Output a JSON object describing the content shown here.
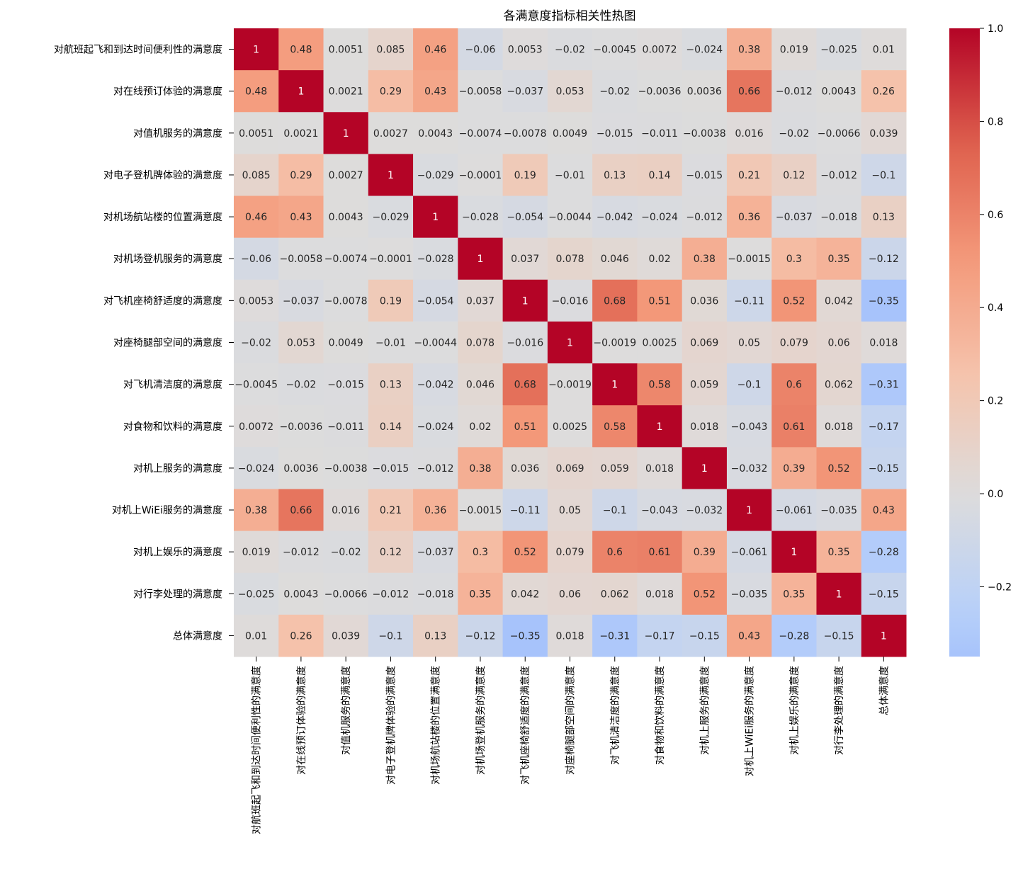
{
  "chart_data": {
    "type": "heatmap",
    "title": "各满意度指标相关性热图",
    "colormap": "coolwarm",
    "center": 0,
    "vmin": -0.35,
    "vmax": 1.0,
    "annotated": true,
    "colorbar_ticks": [
      "-0.2",
      "0.0",
      "0.2",
      "0.4",
      "0.6",
      "0.8",
      "1.0"
    ],
    "colorbar_tick_values": [
      -0.2,
      0,
      0.2,
      0.4,
      0.6,
      0.8,
      1.0
    ],
    "labels": [
      "对航班起飞和到达时间便利性的满意度",
      "对在线预订体验的满意度",
      "对值机服务的满意度",
      "对电子登机牌体验的满意度",
      "对机场航站楼的位置满意度",
      "对机场登机服务的满意度",
      "对飞机座椅舒适度的满意度",
      "对座椅腿部空间的满意度",
      "对飞机清洁度的满意度",
      "对食物和饮料的满意度",
      "对机上服务的满意度",
      "对机上WiEi服务的满意度",
      "对机上娱乐的满意度",
      "对行李处理的满意度",
      "总体满意度"
    ],
    "matrix": [
      [
        1,
        0.48,
        0.0051,
        0.085,
        0.46,
        -0.06,
        0.0053,
        -0.02,
        -0.0045,
        0.0072,
        -0.024,
        0.38,
        0.019,
        -0.025,
        0.01
      ],
      [
        0.48,
        1,
        0.0021,
        0.29,
        0.43,
        -0.0058,
        -0.037,
        0.053,
        -0.02,
        -0.0036,
        0.0036,
        0.66,
        -0.012,
        0.0043,
        0.26
      ],
      [
        0.0051,
        0.0021,
        1,
        0.0027,
        0.0043,
        -0.0074,
        -0.0078,
        0.0049,
        -0.015,
        -0.011,
        -0.0038,
        0.016,
        -0.02,
        -0.0066,
        0.039
      ],
      [
        0.085,
        0.29,
        0.0027,
        1,
        -0.029,
        -0.0001,
        0.19,
        -0.01,
        0.13,
        0.14,
        -0.015,
        0.21,
        0.12,
        -0.012,
        -0.1
      ],
      [
        0.46,
        0.43,
        0.0043,
        -0.029,
        1,
        -0.028,
        -0.054,
        -0.0044,
        -0.042,
        -0.024,
        -0.012,
        0.36,
        -0.037,
        -0.018,
        0.13
      ],
      [
        -0.06,
        -0.0058,
        -0.0074,
        -0.0001,
        -0.028,
        1,
        0.037,
        0.078,
        0.046,
        0.02,
        0.38,
        -0.0015,
        0.3,
        0.35,
        -0.12
      ],
      [
        0.0053,
        -0.037,
        -0.0078,
        0.19,
        -0.054,
        0.037,
        1,
        -0.016,
        0.68,
        0.51,
        0.036,
        -0.11,
        0.52,
        0.042,
        -0.35
      ],
      [
        -0.02,
        0.053,
        0.0049,
        -0.01,
        -0.0044,
        0.078,
        -0.016,
        1,
        -0.0019,
        0.0025,
        0.069,
        0.05,
        0.079,
        0.06,
        0.018
      ],
      [
        -0.0045,
        -0.02,
        -0.015,
        0.13,
        -0.042,
        0.046,
        0.68,
        -0.0019,
        1,
        0.58,
        0.059,
        -0.1,
        0.6,
        0.062,
        -0.31
      ],
      [
        0.0072,
        -0.0036,
        -0.011,
        0.14,
        -0.024,
        0.02,
        0.51,
        0.0025,
        0.58,
        1,
        0.018,
        -0.043,
        0.61,
        0.018,
        -0.17
      ],
      [
        -0.024,
        0.0036,
        -0.0038,
        -0.015,
        -0.012,
        0.38,
        0.036,
        0.069,
        0.059,
        0.018,
        1,
        -0.032,
        0.39,
        0.52,
        -0.15
      ],
      [
        0.38,
        0.66,
        0.016,
        0.21,
        0.36,
        -0.0015,
        -0.11,
        0.05,
        -0.1,
        -0.043,
        -0.032,
        1,
        -0.061,
        -0.035,
        0.43
      ],
      [
        0.019,
        -0.012,
        -0.02,
        0.12,
        -0.037,
        0.3,
        0.52,
        0.079,
        0.6,
        0.61,
        0.39,
        -0.061,
        1,
        0.35,
        -0.28
      ],
      [
        -0.025,
        0.0043,
        -0.0066,
        -0.012,
        -0.018,
        0.35,
        0.042,
        0.06,
        0.062,
        0.018,
        0.52,
        -0.035,
        0.35,
        1,
        -0.15
      ],
      [
        0.01,
        0.26,
        0.039,
        -0.1,
        0.13,
        -0.12,
        -0.35,
        0.018,
        -0.31,
        -0.17,
        -0.15,
        0.43,
        -0.28,
        -0.15,
        1
      ]
    ]
  }
}
